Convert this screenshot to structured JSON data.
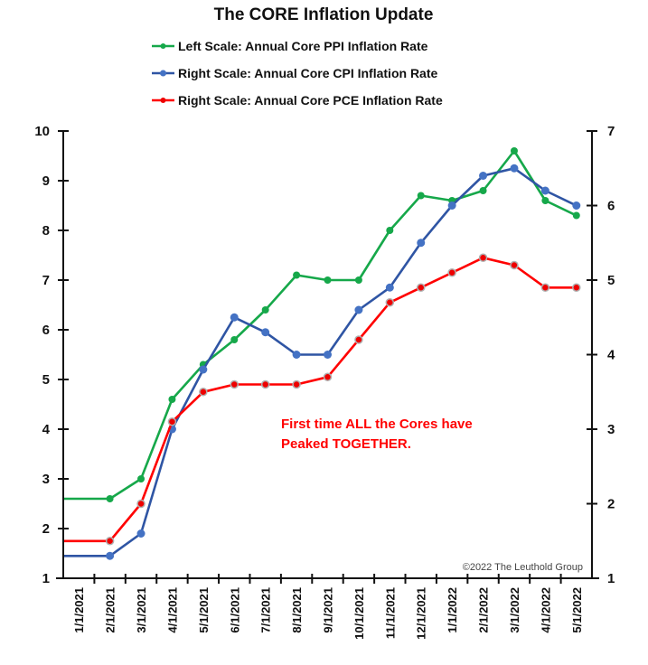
{
  "chart_data": {
    "type": "line",
    "title": "The CORE Inflation Update",
    "xlabel": "",
    "categories": [
      "1/1/2021",
      "2/1/2021",
      "3/1/2021",
      "4/1/2021",
      "5/1/2021",
      "6/1/2021",
      "7/1/2021",
      "8/1/2021",
      "9/1/2021",
      "10/1/2021",
      "11/1/2021",
      "12/1/2021",
      "1/1/2022",
      "2/1/2022",
      "3/1/2022",
      "4/1/2022",
      "5/1/2022"
    ],
    "left_axis": {
      "ylim": [
        1,
        10
      ],
      "ticks": [
        "1",
        "2",
        "3",
        "4",
        "5",
        "6",
        "7",
        "8",
        "9",
        "10"
      ]
    },
    "right_axis": {
      "ylim": [
        1,
        7
      ],
      "ticks": [
        "1",
        "2",
        "3",
        "4",
        "5",
        "6",
        "7"
      ]
    },
    "grid": false,
    "legend_position": "top-center",
    "series": [
      {
        "name": "Left Scale: Annual Core PPI Inflation Rate",
        "axis": "left",
        "color": "#16a84a",
        "marker_color": "#16a84a",
        "values": [
          2.6,
          2.6,
          3.0,
          4.6,
          5.3,
          5.8,
          6.4,
          7.1,
          7.0,
          7.0,
          8.0,
          8.7,
          8.6,
          8.8,
          9.6,
          8.6,
          8.3
        ]
      },
      {
        "name": "Right Scale: Annual Core CPI Inflation Rate",
        "axis": "right",
        "color": "#2f55a4",
        "marker_color": "#4472c4",
        "values": [
          1.3,
          1.3,
          1.6,
          3.0,
          3.8,
          4.5,
          4.3,
          4.0,
          4.0,
          4.6,
          4.9,
          5.5,
          6.0,
          6.4,
          6.5,
          6.2,
          6.0
        ]
      },
      {
        "name": "Right Scale: Annual Core PCE Inflation Rate",
        "axis": "right",
        "color": "#ff0000",
        "marker_color": "#ee0000",
        "values": [
          1.5,
          1.5,
          2.0,
          3.1,
          3.5,
          3.6,
          3.6,
          3.6,
          3.7,
          4.2,
          4.7,
          4.9,
          5.1,
          5.3,
          5.2,
          4.9,
          4.9
        ]
      }
    ],
    "annotations": [
      "First time ALL the Cores have",
      "Peaked TOGETHER."
    ],
    "credit": "©2022 The Leuthold Group"
  }
}
